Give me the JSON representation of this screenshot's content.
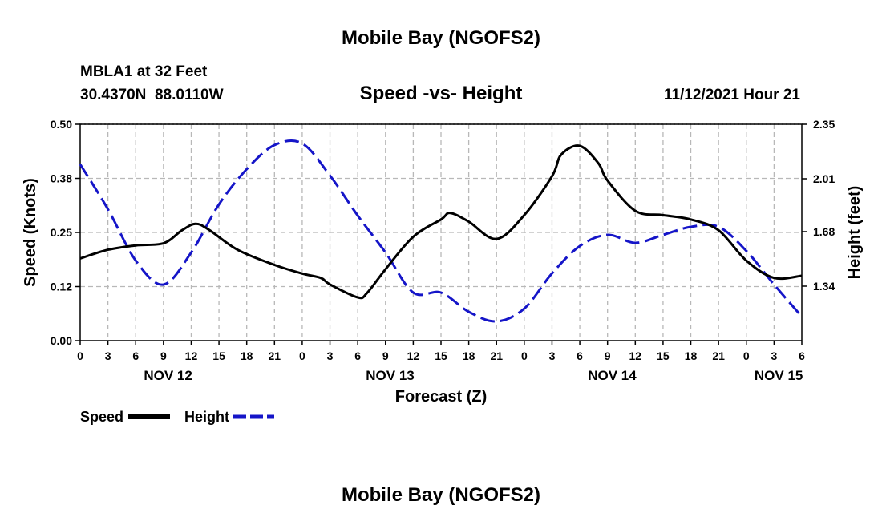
{
  "chart_data": {
    "type": "line",
    "title": "Mobile Bay (NGOFS2)",
    "subtitle": "Speed -vs- Height",
    "station_line1": "MBLA1 at 32 Feet",
    "station_line2": "30.4370N  88.0110W",
    "datetime": "11/12/2021 Hour 21",
    "xlabel": "Forecast (Z)",
    "ylabel_left": "Speed (Knots)",
    "ylabel_right": "Height (feet)",
    "xlim": [
      0,
      78
    ],
    "x_ticks": [
      0,
      3,
      6,
      9,
      12,
      15,
      18,
      21,
      24,
      27,
      30,
      33,
      36,
      39,
      42,
      45,
      48,
      51,
      54,
      57,
      60,
      63,
      66,
      69,
      72,
      75,
      78
    ],
    "x_tick_labels": [
      "0",
      "3",
      "6",
      "9",
      "12",
      "15",
      "18",
      "21",
      "0",
      "3",
      "6",
      "9",
      "12",
      "15",
      "18",
      "21",
      "0",
      "3",
      "6",
      "9",
      "12",
      "15",
      "18",
      "21",
      "0",
      "3",
      "6"
    ],
    "date_labels": [
      {
        "x": 9.5,
        "label": "NOV 12"
      },
      {
        "x": 33.5,
        "label": "NOV 13"
      },
      {
        "x": 57.5,
        "label": "NOV 14"
      },
      {
        "x": 75.5,
        "label": "NOV 15"
      }
    ],
    "ylim_left": [
      0.0,
      0.5
    ],
    "y_ticks_left": [
      0.0,
      0.125,
      0.25,
      0.375,
      0.5
    ],
    "y_tick_labels_left": [
      "0.00",
      "0.12",
      "0.25",
      "0.38",
      "0.50"
    ],
    "ylim_right": [
      1.0,
      2.35
    ],
    "y_ticks_right": [
      1.34,
      1.68,
      2.01,
      2.35
    ],
    "y_tick_labels_right": [
      "1.34",
      "1.68",
      "2.01",
      "2.35"
    ],
    "grid": true,
    "legend_position": "bottom-left",
    "series": [
      {
        "name": "Speed",
        "axis": "left",
        "color": "#000000",
        "style": "solid",
        "x": [
          0,
          3,
          6,
          9,
          11,
          12.5,
          14,
          17,
          21,
          24,
          26,
          27,
          30,
          31,
          33,
          36,
          39,
          40,
          42,
          45,
          48,
          51,
          52,
          54,
          56,
          57,
          60,
          63,
          66,
          69,
          72,
          75,
          78
        ],
        "values": [
          0.19,
          0.21,
          0.22,
          0.225,
          0.255,
          0.27,
          0.255,
          0.21,
          0.175,
          0.155,
          0.145,
          0.13,
          0.1,
          0.11,
          0.165,
          0.24,
          0.28,
          0.295,
          0.275,
          0.235,
          0.29,
          0.38,
          0.43,
          0.45,
          0.41,
          0.37,
          0.3,
          0.29,
          0.28,
          0.255,
          0.185,
          0.145,
          0.15
        ]
      },
      {
        "name": "Height",
        "axis": "right",
        "color": "#1515c8",
        "style": "dashed",
        "x": [
          0,
          3,
          6,
          9,
          12,
          15,
          18,
          21,
          24,
          27,
          30,
          33,
          36,
          39,
          42,
          45,
          48,
          51,
          54,
          57,
          60,
          63,
          66,
          69,
          72,
          75,
          78
        ],
        "values": [
          2.1,
          1.82,
          1.5,
          1.35,
          1.55,
          1.85,
          2.07,
          2.22,
          2.23,
          2.03,
          1.78,
          1.55,
          1.3,
          1.3,
          1.18,
          1.12,
          1.2,
          1.42,
          1.59,
          1.66,
          1.61,
          1.66,
          1.71,
          1.71,
          1.56,
          1.35,
          1.15
        ]
      }
    ],
    "footer_title": "Mobile Bay (NGOFS2)"
  },
  "colors": {
    "background": "#ffffff",
    "axis": "#000000",
    "grid": "#b8b8b8",
    "speed": "#000000",
    "height": "#1515c8"
  }
}
